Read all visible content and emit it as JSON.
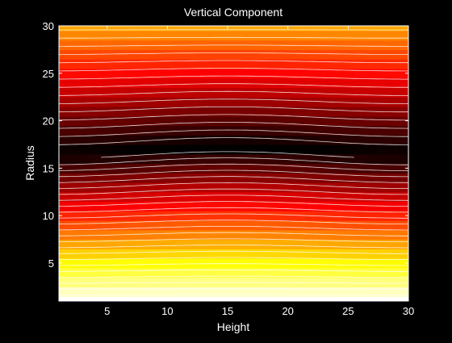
{
  "chart_data": {
    "type": "heatmap",
    "title": "Vertical Component",
    "xlabel": "Height",
    "ylabel": "Radius",
    "xlim": [
      1,
      30
    ],
    "ylim": [
      1,
      30
    ],
    "xticks": [
      5,
      10,
      15,
      20,
      25,
      30
    ],
    "yticks": [
      5,
      10,
      15,
      20,
      25,
      30
    ],
    "colormap": "hot",
    "background_color": "#000000",
    "text_color": "#ffffff",
    "contour_color": "#ffffff",
    "grid": false,
    "legend": "none",
    "description_intensity": "bright near radius 1-5 (white/yellow), dark band centered near radius 17, brightening again toward radius 30 (red/orange); slight bulge near height 15"
  }
}
